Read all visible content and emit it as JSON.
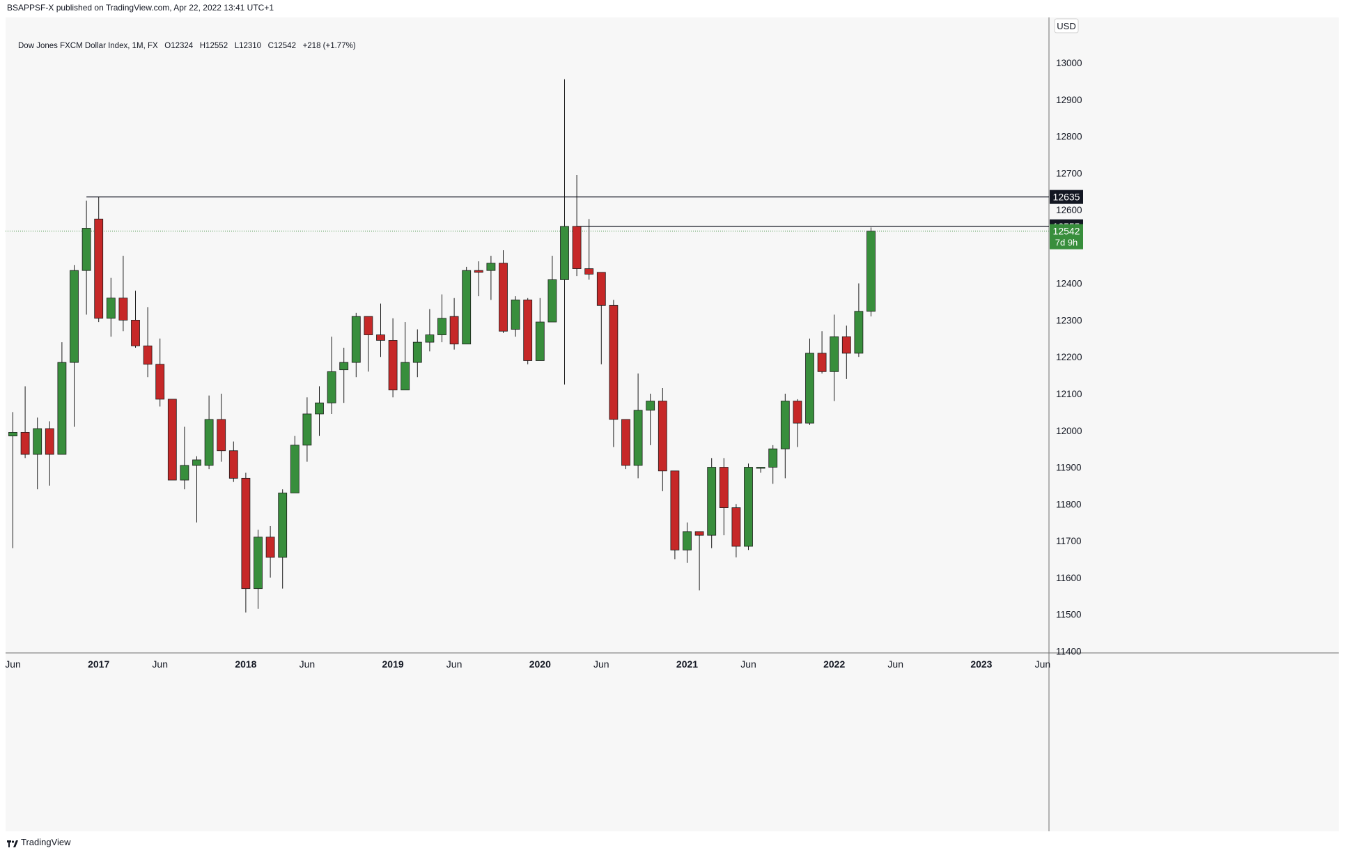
{
  "header": {
    "published_line": "BSAPPSF-X published on TradingView.com, Apr 22, 2022 13:41 UTC+1"
  },
  "legend": {
    "symbol": "Dow Jones FXCM Dollar Index, 1M, FX",
    "open_label": "O",
    "open": "12324",
    "high_label": "H",
    "high": "12552",
    "low_label": "L",
    "low": "12310",
    "close_label": "C",
    "close": "12542",
    "change": "+218 (+1.77%)"
  },
  "footer": {
    "brand": "TradingView"
  },
  "colors": {
    "up": "#388e3c",
    "down": "#c62828",
    "wick": "#1b1b1b",
    "level_line": "#131722",
    "last_price": "#388e3c",
    "background": "#f7f7f7"
  },
  "chart_data": {
    "type": "candlestick",
    "currency": "USD",
    "interval": "1M",
    "y_ticks": [
      11400,
      11500,
      11600,
      11700,
      11800,
      11900,
      12000,
      12100,
      12200,
      12300,
      12400,
      12600,
      12700,
      12800,
      12900,
      13000
    ],
    "ylim": [
      11330,
      13110
    ],
    "x_labels": [
      {
        "text": "Jun",
        "month": "2016-06"
      },
      {
        "text": "2017",
        "month": "2017-01",
        "bold": true
      },
      {
        "text": "Jun",
        "month": "2017-06"
      },
      {
        "text": "2018",
        "month": "2018-01",
        "bold": true
      },
      {
        "text": "Jun",
        "month": "2018-06"
      },
      {
        "text": "2019",
        "month": "2019-01",
        "bold": true
      },
      {
        "text": "Jun",
        "month": "2019-06"
      },
      {
        "text": "2020",
        "month": "2020-01",
        "bold": true
      },
      {
        "text": "Jun",
        "month": "2020-06"
      },
      {
        "text": "2021",
        "month": "2021-01",
        "bold": true
      },
      {
        "text": "Jun",
        "month": "2021-06"
      },
      {
        "text": "2022",
        "month": "2022-01",
        "bold": true
      },
      {
        "text": "Jun",
        "month": "2022-06"
      },
      {
        "text": "2023",
        "month": "2023-01",
        "bold": true
      },
      {
        "text": "Jun",
        "month": "2023-06"
      }
    ],
    "horizontal_levels": [
      {
        "value": 12635,
        "start_month": "2016-12",
        "label": "12635",
        "label_style": "dark"
      },
      {
        "value": 12555,
        "start_month": "2020-04",
        "label": "12555",
        "label_style": "dark"
      }
    ],
    "last_price": {
      "value": 12542,
      "label": "12542",
      "countdown": "7d 9h"
    },
    "candles": [
      {
        "month": "2016-06",
        "o": 11985,
        "h": 12050,
        "l": 11680,
        "c": 11995
      },
      {
        "month": "2016-07",
        "o": 11995,
        "h": 12120,
        "l": 11925,
        "c": 11935
      },
      {
        "month": "2016-08",
        "o": 11935,
        "h": 12035,
        "l": 11840,
        "c": 12005
      },
      {
        "month": "2016-09",
        "o": 12005,
        "h": 12025,
        "l": 11850,
        "c": 11935
      },
      {
        "month": "2016-10",
        "o": 11935,
        "h": 12240,
        "l": 11935,
        "c": 12185
      },
      {
        "month": "2016-11",
        "o": 12185,
        "h": 12450,
        "l": 12010,
        "c": 12435
      },
      {
        "month": "2016-12",
        "o": 12435,
        "h": 12625,
        "l": 12315,
        "c": 12550
      },
      {
        "month": "2017-01",
        "o": 12575,
        "h": 12635,
        "l": 12295,
        "c": 12305
      },
      {
        "month": "2017-02",
        "o": 12305,
        "h": 12415,
        "l": 12255,
        "c": 12360
      },
      {
        "month": "2017-03",
        "o": 12360,
        "h": 12475,
        "l": 12270,
        "c": 12300
      },
      {
        "month": "2017-04",
        "o": 12300,
        "h": 12380,
        "l": 12225,
        "c": 12230
      },
      {
        "month": "2017-05",
        "o": 12230,
        "h": 12335,
        "l": 12145,
        "c": 12180
      },
      {
        "month": "2017-06",
        "o": 12180,
        "h": 12250,
        "l": 12065,
        "c": 12085
      },
      {
        "month": "2017-07",
        "o": 12085,
        "h": 12085,
        "l": 11865,
        "c": 11865
      },
      {
        "month": "2017-08",
        "o": 11865,
        "h": 12010,
        "l": 11840,
        "c": 11905
      },
      {
        "month": "2017-09",
        "o": 11905,
        "h": 11930,
        "l": 11750,
        "c": 11920
      },
      {
        "month": "2017-10",
        "o": 11905,
        "h": 12095,
        "l": 11895,
        "c": 12030
      },
      {
        "month": "2017-11",
        "o": 12030,
        "h": 12100,
        "l": 11915,
        "c": 11945
      },
      {
        "month": "2017-12",
        "o": 11945,
        "h": 11970,
        "l": 11860,
        "c": 11870
      },
      {
        "month": "2018-01",
        "o": 11870,
        "h": 11885,
        "l": 11505,
        "c": 11570
      },
      {
        "month": "2018-02",
        "o": 11570,
        "h": 11730,
        "l": 11515,
        "c": 11710
      },
      {
        "month": "2018-03",
        "o": 11710,
        "h": 11740,
        "l": 11600,
        "c": 11655
      },
      {
        "month": "2018-04",
        "o": 11655,
        "h": 11840,
        "l": 11570,
        "c": 11830
      },
      {
        "month": "2018-05",
        "o": 11830,
        "h": 11985,
        "l": 11830,
        "c": 11960
      },
      {
        "month": "2018-06",
        "o": 11960,
        "h": 12090,
        "l": 11915,
        "c": 12045
      },
      {
        "month": "2018-07",
        "o": 12045,
        "h": 12120,
        "l": 11985,
        "c": 12075
      },
      {
        "month": "2018-08",
        "o": 12075,
        "h": 12255,
        "l": 12045,
        "c": 12160
      },
      {
        "month": "2018-09",
        "o": 12165,
        "h": 12225,
        "l": 12075,
        "c": 12185
      },
      {
        "month": "2018-10",
        "o": 12185,
        "h": 12320,
        "l": 12145,
        "c": 12310
      },
      {
        "month": "2018-11",
        "o": 12310,
        "h": 12310,
        "l": 12160,
        "c": 12260
      },
      {
        "month": "2018-12",
        "o": 12260,
        "h": 12345,
        "l": 12200,
        "c": 12245
      },
      {
        "month": "2019-01",
        "o": 12245,
        "h": 12305,
        "l": 12090,
        "c": 12110
      },
      {
        "month": "2019-02",
        "o": 12110,
        "h": 12295,
        "l": 12110,
        "c": 12185
      },
      {
        "month": "2019-03",
        "o": 12185,
        "h": 12275,
        "l": 12145,
        "c": 12240
      },
      {
        "month": "2019-04",
        "o": 12240,
        "h": 12330,
        "l": 12215,
        "c": 12260
      },
      {
        "month": "2019-05",
        "o": 12260,
        "h": 12370,
        "l": 12240,
        "c": 12305
      },
      {
        "month": "2019-06",
        "o": 12310,
        "h": 12360,
        "l": 12220,
        "c": 12235
      },
      {
        "month": "2019-07",
        "o": 12235,
        "h": 12445,
        "l": 12235,
        "c": 12435
      },
      {
        "month": "2019-08",
        "o": 12435,
        "h": 12460,
        "l": 12365,
        "c": 12430
      },
      {
        "month": "2019-09",
        "o": 12435,
        "h": 12475,
        "l": 12355,
        "c": 12455
      },
      {
        "month": "2019-10",
        "o": 12455,
        "h": 12490,
        "l": 12265,
        "c": 12270
      },
      {
        "month": "2019-11",
        "o": 12275,
        "h": 12365,
        "l": 12255,
        "c": 12355
      },
      {
        "month": "2019-12",
        "o": 12355,
        "h": 12360,
        "l": 12180,
        "c": 12190
      },
      {
        "month": "2020-01",
        "o": 12190,
        "h": 12360,
        "l": 12190,
        "c": 12295
      },
      {
        "month": "2020-02",
        "o": 12295,
        "h": 12475,
        "l": 12295,
        "c": 12410
      },
      {
        "month": "2020-03",
        "o": 12410,
        "h": 12955,
        "l": 12125,
        "c": 12555
      },
      {
        "month": "2020-04",
        "o": 12555,
        "h": 12695,
        "l": 12420,
        "c": 12440
      },
      {
        "month": "2020-05",
        "o": 12440,
        "h": 12575,
        "l": 12410,
        "c": 12425
      },
      {
        "month": "2020-06",
        "o": 12430,
        "h": 12430,
        "l": 12180,
        "c": 12340
      },
      {
        "month": "2020-07",
        "o": 12340,
        "h": 12355,
        "l": 11955,
        "c": 12030
      },
      {
        "month": "2020-08",
        "o": 12030,
        "h": 12030,
        "l": 11895,
        "c": 11905
      },
      {
        "month": "2020-09",
        "o": 11905,
        "h": 12155,
        "l": 11870,
        "c": 12055
      },
      {
        "month": "2020-10",
        "o": 12055,
        "h": 12100,
        "l": 11960,
        "c": 12080
      },
      {
        "month": "2020-11",
        "o": 12080,
        "h": 12115,
        "l": 11835,
        "c": 11890
      },
      {
        "month": "2020-12",
        "o": 11890,
        "h": 11890,
        "l": 11650,
        "c": 11675
      },
      {
        "month": "2021-01",
        "o": 11675,
        "h": 11750,
        "l": 11640,
        "c": 11725
      },
      {
        "month": "2021-02",
        "o": 11725,
        "h": 11725,
        "l": 11565,
        "c": 11715
      },
      {
        "month": "2021-03",
        "o": 11715,
        "h": 11925,
        "l": 11680,
        "c": 11900
      },
      {
        "month": "2021-04",
        "o": 11900,
        "h": 11925,
        "l": 11715,
        "c": 11790
      },
      {
        "month": "2021-05",
        "o": 11790,
        "h": 11800,
        "l": 11655,
        "c": 11685
      },
      {
        "month": "2021-06",
        "o": 11685,
        "h": 11910,
        "l": 11675,
        "c": 11900
      },
      {
        "month": "2021-07",
        "o": 11900,
        "h": 11900,
        "l": 11885,
        "c": 11900
      },
      {
        "month": "2021-08",
        "o": 11900,
        "h": 11960,
        "l": 11855,
        "c": 11950
      },
      {
        "month": "2021-09",
        "o": 11950,
        "h": 12100,
        "l": 11870,
        "c": 12080
      },
      {
        "month": "2021-10",
        "o": 12080,
        "h": 12085,
        "l": 11955,
        "c": 12020
      },
      {
        "month": "2021-11",
        "o": 12020,
        "h": 12250,
        "l": 12015,
        "c": 12210
      },
      {
        "month": "2021-12",
        "o": 12210,
        "h": 12270,
        "l": 12155,
        "c": 12160
      },
      {
        "month": "2022-01",
        "o": 12160,
        "h": 12315,
        "l": 12080,
        "c": 12255
      },
      {
        "month": "2022-02",
        "o": 12255,
        "h": 12285,
        "l": 12140,
        "c": 12210
      },
      {
        "month": "2022-03",
        "o": 12210,
        "h": 12400,
        "l": 12200,
        "c": 12324
      },
      {
        "month": "2022-04",
        "o": 12324,
        "h": 12552,
        "l": 12310,
        "c": 12542
      }
    ]
  }
}
